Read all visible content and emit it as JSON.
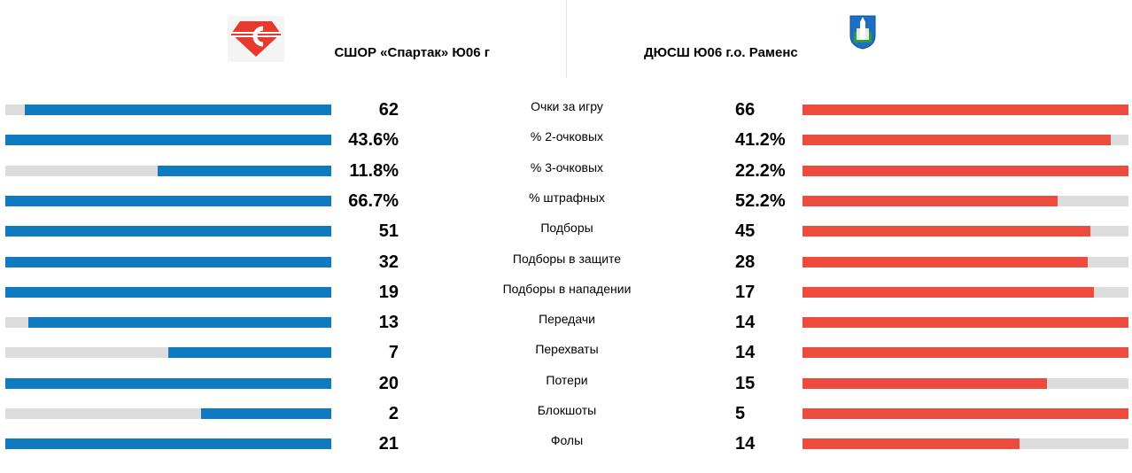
{
  "header": {
    "home_team": "СШОР «Спартак» Ю06 г",
    "away_team": "ДЮСШ Ю06 г.о. Раменс",
    "home_logo": "spartak-logo-icon",
    "away_logo": "ramenskoye-coat-of-arms-icon"
  },
  "colors": {
    "home": "#0f7ac0",
    "away": "#ee4b3f",
    "track": "#dcdcdc"
  },
  "stats": [
    {
      "label": "Очки за игру",
      "home": "62",
      "away": "66",
      "home_fill": 0.939,
      "away_fill": 1.0
    },
    {
      "label": "% 2-очковых",
      "home": "43.6%",
      "away": "41.2%",
      "home_fill": 1.0,
      "away_fill": 0.945
    },
    {
      "label": "% 3-очковых",
      "home": "11.8%",
      "away": "22.2%",
      "home_fill": 0.532,
      "away_fill": 1.0
    },
    {
      "label": "% штрафных",
      "home": "66.7%",
      "away": "52.2%",
      "home_fill": 1.0,
      "away_fill": 0.783
    },
    {
      "label": "Подборы",
      "home": "51",
      "away": "45",
      "home_fill": 1.0,
      "away_fill": 0.882
    },
    {
      "label": "Подборы в защите",
      "home": "32",
      "away": "28",
      "home_fill": 1.0,
      "away_fill": 0.875
    },
    {
      "label": "Подборы в нападении",
      "home": "19",
      "away": "17",
      "home_fill": 1.0,
      "away_fill": 0.895
    },
    {
      "label": "Передачи",
      "home": "13",
      "away": "14",
      "home_fill": 0.929,
      "away_fill": 1.0
    },
    {
      "label": "Перехваты",
      "home": "7",
      "away": "14",
      "home_fill": 0.5,
      "away_fill": 1.0
    },
    {
      "label": "Потери",
      "home": "20",
      "away": "15",
      "home_fill": 1.0,
      "away_fill": 0.75
    },
    {
      "label": "Блокшоты",
      "home": "2",
      "away": "5",
      "home_fill": 0.4,
      "away_fill": 1.0
    },
    {
      "label": "Фолы",
      "home": "21",
      "away": "14",
      "home_fill": 1.0,
      "away_fill": 0.667
    }
  ]
}
